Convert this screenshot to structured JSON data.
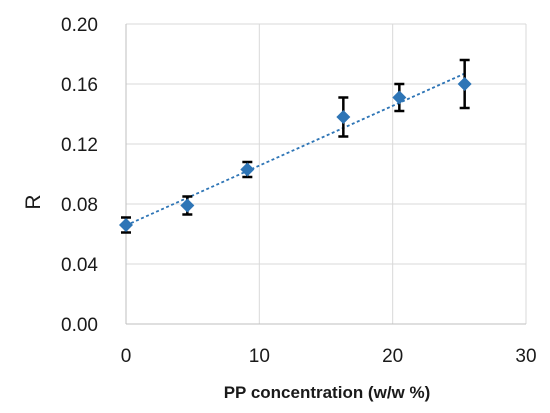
{
  "chart_data": {
    "type": "scatter",
    "title": "",
    "xlabel": "PP concentration (w/w %)",
    "ylabel": "R",
    "xlim": [
      0,
      30
    ],
    "ylim": [
      0,
      0.2
    ],
    "x_ticks": [
      "0",
      "10",
      "20",
      "30"
    ],
    "y_ticks": [
      "0.00",
      "0.04",
      "0.08",
      "0.12",
      "0.16",
      "0.20"
    ],
    "grid": true,
    "legend": "none",
    "trendline": "linear",
    "colors": {
      "marker": "#2e75b6",
      "trendline": "#2e75b6",
      "error_bar": "#000000"
    },
    "points": [
      {
        "x": 0,
        "y": 0.066,
        "err": 0.005
      },
      {
        "x": 4.6,
        "y": 0.079,
        "err": 0.006
      },
      {
        "x": 9.1,
        "y": 0.103,
        "err": 0.005
      },
      {
        "x": 16.3,
        "y": 0.138,
        "err": 0.013
      },
      {
        "x": 20.5,
        "y": 0.151,
        "err": 0.009
      },
      {
        "x": 25.4,
        "y": 0.16,
        "err": 0.016
      }
    ]
  }
}
